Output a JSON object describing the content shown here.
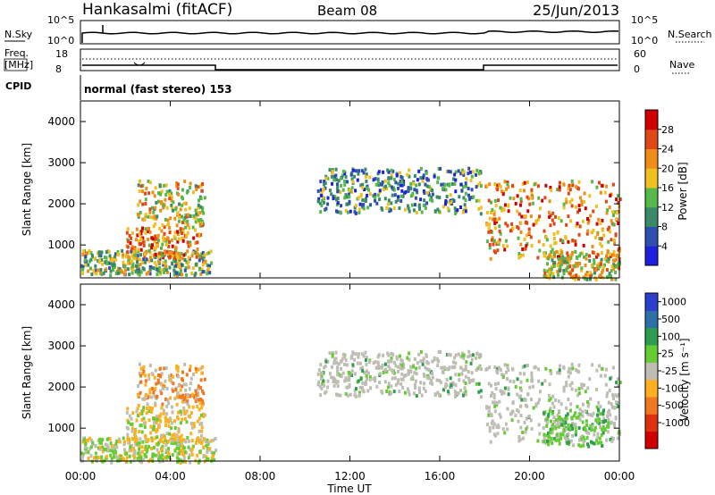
{
  "header": {
    "station": "Hankasalmi (fitACF)",
    "beam": "Beam 08",
    "date": "25/Jun/2013"
  },
  "top_panels": {
    "nsky_label": "N.Sky",
    "nsearch_label": "N.Search",
    "counts_ticks": [
      "10^5",
      "10^0"
    ],
    "freq_label_1": "Freq.",
    "freq_label_2": "[MHz]",
    "freq_ticks": [
      "18",
      "8"
    ],
    "nave_label": "Nave",
    "nave_ticks": [
      "60",
      "0"
    ],
    "cpid_label": "CPID",
    "cpid_text": "normal (fast stereo) 153"
  },
  "chart_data": [
    {
      "type": "heatmap",
      "title": "",
      "ylabel": "Slant Range [km]",
      "xlabel": "",
      "ylim": [
        200,
        4500
      ],
      "xlim": [
        0,
        24
      ],
      "yticks": [
        "1000",
        "2000",
        "3000",
        "4000"
      ],
      "colorbar": {
        "label": "Power [dB]",
        "ticks": [
          "4",
          "8",
          "12",
          "16",
          "20",
          "24",
          "28"
        ],
        "colors": [
          "#1f1fe0",
          "#2f4fb0",
          "#3a8a6a",
          "#55b848",
          "#f0c020",
          "#f08c18",
          "#e04818",
          "#d00000"
        ]
      },
      "regions": [
        {
          "t": [
            0.0,
            5.8
          ],
          "range": [
            300,
            900
          ],
          "level": 3
        },
        {
          "t": [
            2.0,
            5.3
          ],
          "range": [
            700,
            1500
          ],
          "level": 5
        },
        {
          "t": [
            2.5,
            5.5
          ],
          "range": [
            1500,
            2600
          ],
          "level": 4
        },
        {
          "t": [
            10.5,
            17.8
          ],
          "range": [
            1800,
            2900
          ],
          "level": 2
        },
        {
          "t": [
            18.0,
            24.0
          ],
          "range": [
            700,
            2600
          ],
          "level": 5
        },
        {
          "t": [
            20.5,
            24.0
          ],
          "range": [
            200,
            900
          ],
          "level": 4
        }
      ]
    },
    {
      "type": "heatmap",
      "title": "",
      "ylabel": "Slant Range [km]",
      "xlabel": "Time UT",
      "ylim": [
        200,
        4500
      ],
      "xlim": [
        0,
        24
      ],
      "yticks": [
        "1000",
        "2000",
        "3000",
        "4000"
      ],
      "xticks": [
        "00:00",
        "04:00",
        "08:00",
        "12:00",
        "16:00",
        "20:00",
        "00:00"
      ],
      "colorbar": {
        "label": "Velocity [m s⁻¹]",
        "ticks": [
          "1000",
          "500",
          "100",
          "25",
          "-25",
          "-100",
          "-500",
          "-1000"
        ],
        "colors": [
          "#2b3fcf",
          "#2f6fa8",
          "#2e9e4e",
          "#66cc33",
          "#bdbdb4",
          "#ffb020",
          "#f07820",
          "#e03010",
          "#d00000"
        ]
      },
      "regions": [
        {
          "t": [
            0.0,
            6.0
          ],
          "range": [
            200,
            800
          ],
          "class": "low positive"
        },
        {
          "t": [
            2.0,
            5.5
          ],
          "range": [
            700,
            1600
          ],
          "class": "negative"
        },
        {
          "t": [
            2.5,
            5.5
          ],
          "range": [
            1600,
            2600
          ],
          "class": "mixed"
        },
        {
          "t": [
            10.5,
            17.8
          ],
          "range": [
            1800,
            2900
          ],
          "class": "near zero"
        },
        {
          "t": [
            18.0,
            24.0
          ],
          "range": [
            700,
            2600
          ],
          "class": "near zero"
        },
        {
          "t": [
            20.5,
            23.5
          ],
          "range": [
            600,
            1500
          ],
          "class": "positive"
        }
      ]
    }
  ]
}
